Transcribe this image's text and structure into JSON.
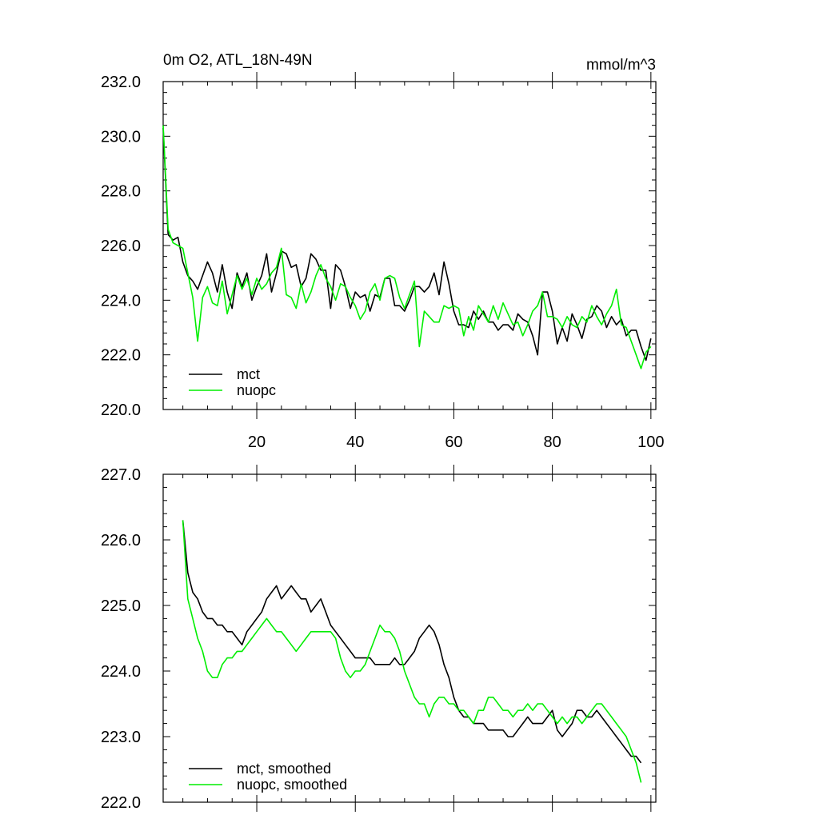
{
  "colors": {
    "mct": "#000000",
    "nuopc": "#00ee00"
  },
  "chart_data": [
    {
      "type": "line",
      "title": "0m O2, ATL_18N-49N",
      "units": "mmol/m^3",
      "xlim": [
        1,
        101
      ],
      "ylim": [
        220.0,
        232.0
      ],
      "x_ticks": [
        20,
        40,
        60,
        80,
        100
      ],
      "x_tick_labels": [
        "20",
        "40",
        "60",
        "80",
        "100"
      ],
      "y_ticks": [
        220.0,
        222.0,
        224.0,
        226.0,
        228.0,
        230.0,
        232.0
      ],
      "y_tick_labels": [
        "220.0",
        "222.0",
        "224.0",
        "226.0",
        "228.0",
        "230.0",
        "232.0"
      ],
      "legend": "bottom-left",
      "x": [
        1,
        2,
        3,
        4,
        5,
        6,
        7,
        8,
        9,
        10,
        11,
        12,
        13,
        14,
        15,
        16,
        17,
        18,
        19,
        20,
        21,
        22,
        23,
        24,
        25,
        26,
        27,
        28,
        29,
        30,
        31,
        32,
        33,
        34,
        35,
        36,
        37,
        38,
        39,
        40,
        41,
        42,
        43,
        44,
        45,
        46,
        47,
        48,
        49,
        50,
        51,
        52,
        53,
        54,
        55,
        56,
        57,
        58,
        59,
        60,
        61,
        62,
        63,
        64,
        65,
        66,
        67,
        68,
        69,
        70,
        71,
        72,
        73,
        74,
        75,
        76,
        77,
        78,
        79,
        80,
        81,
        82,
        83,
        84,
        85,
        86,
        87,
        88,
        89,
        90,
        91,
        92,
        93,
        94,
        95,
        96,
        97,
        98,
        99,
        100
      ],
      "series": [
        {
          "name": "mct",
          "color_key": "mct",
          "values": [
            230.3,
            226.4,
            226.2,
            226.3,
            225.4,
            224.9,
            224.7,
            224.4,
            224.9,
            225.4,
            225.0,
            224.3,
            225.3,
            224.3,
            223.7,
            225.0,
            224.5,
            225.0,
            224.0,
            224.5,
            224.9,
            225.7,
            224.3,
            225.0,
            225.8,
            225.7,
            225.2,
            225.3,
            224.5,
            224.8,
            225.7,
            225.5,
            225.1,
            225.1,
            223.7,
            225.3,
            225.1,
            224.5,
            223.7,
            224.3,
            224.1,
            224.2,
            223.6,
            224.2,
            224.1,
            224.8,
            224.8,
            223.8,
            223.8,
            223.6,
            224.0,
            224.5,
            224.5,
            224.3,
            224.5,
            225.0,
            224.2,
            225.4,
            224.6,
            223.6,
            223.1,
            223.1,
            223.0,
            223.6,
            223.3,
            223.6,
            223.2,
            223.2,
            222.9,
            223.1,
            223.1,
            222.9,
            223.5,
            223.3,
            223.2,
            222.7,
            222.0,
            224.3,
            224.3,
            223.6,
            222.4,
            223.0,
            222.5,
            223.5,
            223.1,
            222.6,
            223.3,
            223.4,
            223.8,
            223.6,
            223.0,
            223.4,
            223.1,
            223.3,
            222.7,
            222.9,
            222.9,
            222.3,
            221.8,
            222.6
          ]
        },
        {
          "name": "nuopc",
          "color_key": "nuopc",
          "values": [
            230.4,
            226.6,
            226.1,
            226.0,
            225.9,
            225.0,
            224.1,
            222.5,
            224.1,
            224.5,
            223.9,
            223.8,
            224.7,
            223.5,
            224.2,
            224.9,
            224.4,
            224.8,
            224.2,
            224.8,
            224.4,
            224.6,
            225.0,
            225.2,
            225.9,
            224.2,
            224.1,
            223.7,
            224.6,
            223.9,
            224.3,
            224.9,
            225.3,
            224.8,
            224.5,
            224.0,
            224.6,
            224.5,
            224.1,
            223.8,
            223.3,
            223.6,
            224.3,
            224.6,
            224.0,
            224.8,
            224.9,
            224.8,
            224.1,
            223.7,
            224.2,
            224.7,
            222.3,
            223.6,
            223.4,
            223.2,
            223.2,
            223.8,
            223.7,
            223.8,
            223.7,
            222.7,
            223.4,
            222.9,
            223.8,
            223.5,
            223.2,
            223.8,
            223.3,
            223.9,
            223.5,
            223.1,
            223.2,
            222.7,
            223.1,
            223.6,
            223.8,
            224.3,
            223.4,
            223.4,
            223.3,
            223.0,
            223.4,
            223.1,
            223.0,
            223.4,
            223.2,
            223.8,
            223.4,
            223.1,
            223.5,
            223.8,
            224.4,
            223.1,
            223.0,
            222.5,
            222.0,
            221.5,
            222.1,
            222.3
          ]
        }
      ]
    },
    {
      "type": "line",
      "xlim": [
        1,
        101
      ],
      "ylim": [
        222.0,
        227.0
      ],
      "x_ticks": [
        20,
        40,
        60,
        80,
        100
      ],
      "y_ticks": [
        222.0,
        223.0,
        224.0,
        225.0,
        226.0,
        227.0
      ],
      "y_tick_labels": [
        "222.0",
        "223.0",
        "224.0",
        "225.0",
        "226.0",
        "227.0"
      ],
      "legend": "bottom-left",
      "x": [
        5,
        6,
        7,
        8,
        9,
        10,
        11,
        12,
        13,
        14,
        15,
        16,
        17,
        18,
        19,
        20,
        21,
        22,
        23,
        24,
        25,
        26,
        27,
        28,
        29,
        30,
        31,
        32,
        33,
        34,
        35,
        36,
        37,
        38,
        39,
        40,
        41,
        42,
        43,
        44,
        45,
        46,
        47,
        48,
        49,
        50,
        51,
        52,
        53,
        54,
        55,
        56,
        57,
        58,
        59,
        60,
        61,
        62,
        63,
        64,
        65,
        66,
        67,
        68,
        69,
        70,
        71,
        72,
        73,
        74,
        75,
        76,
        77,
        78,
        79,
        80,
        81,
        82,
        83,
        84,
        85,
        86,
        87,
        88,
        89,
        90,
        91,
        92,
        93,
        94,
        95,
        96,
        97,
        98
      ],
      "series": [
        {
          "name": "mct, smoothed",
          "color_key": "mct",
          "values": [
            226.3,
            225.5,
            225.2,
            225.1,
            224.9,
            224.8,
            224.8,
            224.7,
            224.7,
            224.6,
            224.6,
            224.5,
            224.4,
            224.6,
            224.7,
            224.8,
            224.9,
            225.1,
            225.2,
            225.3,
            225.1,
            225.2,
            225.3,
            225.2,
            225.1,
            225.1,
            224.9,
            225.0,
            225.1,
            224.9,
            224.7,
            224.6,
            224.5,
            224.4,
            224.3,
            224.2,
            224.2,
            224.2,
            224.2,
            224.1,
            224.1,
            224.1,
            224.1,
            224.2,
            224.1,
            224.1,
            224.2,
            224.3,
            224.5,
            224.6,
            224.7,
            224.6,
            224.4,
            224.1,
            223.9,
            223.6,
            223.4,
            223.3,
            223.3,
            223.2,
            223.2,
            223.2,
            223.1,
            223.1,
            223.1,
            223.1,
            223.0,
            223.0,
            223.1,
            223.2,
            223.3,
            223.2,
            223.2,
            223.2,
            223.3,
            223.4,
            223.1,
            223.0,
            223.1,
            223.2,
            223.4,
            223.4,
            223.3,
            223.3,
            223.4,
            223.3,
            223.2,
            223.1,
            223.0,
            222.9,
            222.8,
            222.7,
            222.7,
            222.6
          ]
        },
        {
          "name": "nuopc, smoothed",
          "color_key": "nuopc",
          "values": [
            226.3,
            225.1,
            224.8,
            224.5,
            224.3,
            224.0,
            223.9,
            223.9,
            224.1,
            224.2,
            224.2,
            224.3,
            224.3,
            224.4,
            224.5,
            224.6,
            224.7,
            224.8,
            224.7,
            224.6,
            224.6,
            224.5,
            224.4,
            224.3,
            224.4,
            224.5,
            224.6,
            224.6,
            224.6,
            224.6,
            224.6,
            224.5,
            224.2,
            224.0,
            223.9,
            224.0,
            224.0,
            224.1,
            224.3,
            224.5,
            224.7,
            224.6,
            224.6,
            224.5,
            224.3,
            224.0,
            223.8,
            223.6,
            223.5,
            223.5,
            223.3,
            223.5,
            223.6,
            223.6,
            223.5,
            223.5,
            223.4,
            223.4,
            223.3,
            223.2,
            223.4,
            223.4,
            223.6,
            223.6,
            223.5,
            223.4,
            223.4,
            223.3,
            223.4,
            223.4,
            223.5,
            223.4,
            223.5,
            223.5,
            223.4,
            223.3,
            223.2,
            223.3,
            223.2,
            223.3,
            223.3,
            223.2,
            223.3,
            223.4,
            223.5,
            223.5,
            223.4,
            223.3,
            223.2,
            223.1,
            223.0,
            222.8,
            222.6,
            222.3
          ]
        }
      ]
    }
  ]
}
